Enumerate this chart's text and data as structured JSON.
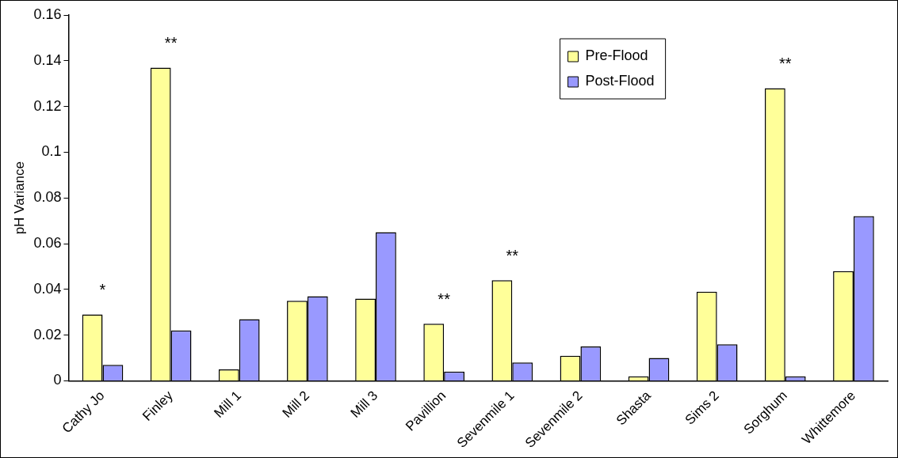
{
  "chart_data": {
    "type": "bar",
    "ylabel": "pH Variance",
    "categories": [
      "Cathy Jo",
      "Finley",
      "Mill 1",
      "Mill 2",
      "Mill 3",
      "Pavillion",
      "Sevenmile 1",
      "Sevenmile 2",
      "Shasta",
      "Sims 2",
      "Sorghum",
      "Whittemore"
    ],
    "series": [
      {
        "name": "Pre-Flood",
        "color": "#ffff99",
        "values": [
          0.029,
          0.137,
          0.005,
          0.035,
          0.036,
          0.025,
          0.044,
          0.011,
          0.002,
          0.039,
          0.128,
          0.048
        ]
      },
      {
        "name": "Post-Flood",
        "color": "#9999ff",
        "values": [
          0.007,
          0.022,
          0.027,
          0.037,
          0.065,
          0.004,
          0.008,
          0.015,
          0.01,
          0.016,
          0.002,
          0.072
        ]
      }
    ],
    "ylim": [
      0,
      0.16
    ],
    "yticks": [
      0,
      0.02,
      0.04,
      0.06,
      0.08,
      0.1,
      0.12,
      0.14,
      0.16
    ],
    "grid": false,
    "legend": "top right",
    "annotations": [
      {
        "text": "*",
        "x": "Cathy Jo",
        "y": 0.029
      },
      {
        "text": "**",
        "x": "Finley",
        "y": 0.137
      },
      {
        "text": "**",
        "x": "Pavillion",
        "y": 0.025
      },
      {
        "text": "**",
        "x": "Sevenmile 1",
        "y": 0.044
      },
      {
        "text": "**",
        "x": "Sorghum",
        "y": 0.128
      }
    ]
  }
}
